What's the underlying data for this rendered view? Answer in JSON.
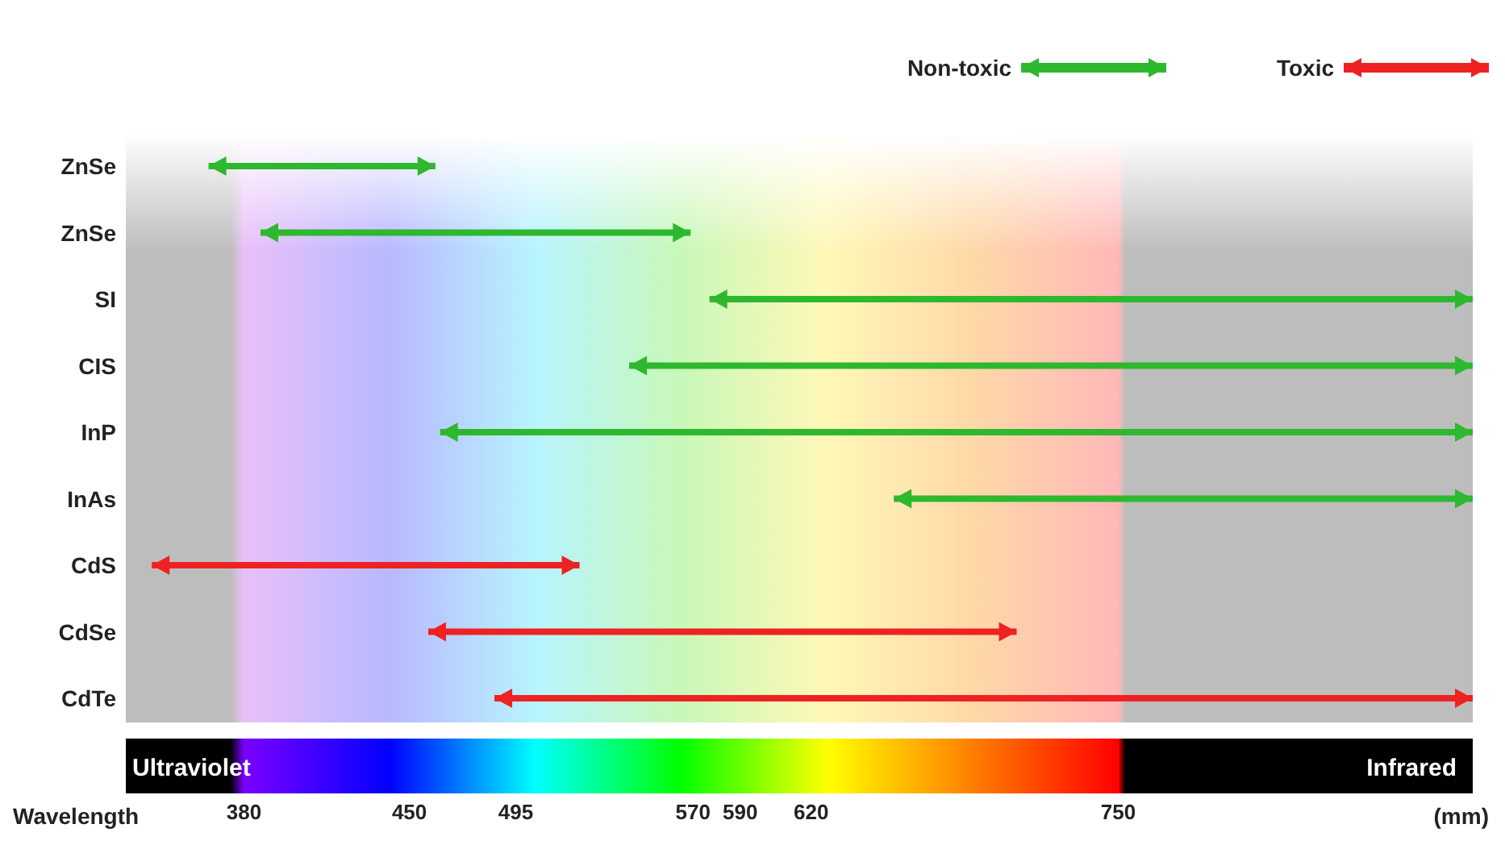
{
  "chart_data": {
    "type": "bar",
    "orientation": "horizontal",
    "xlabel": "Wavelength",
    "categories": [
      "ZnSe",
      "ZnSe",
      "SI",
      "CIS",
      "InP",
      "InAs",
      "CdS",
      "CdSe",
      "CdTe"
    ],
    "series": [
      {
        "name": "Non-toxic",
        "color": "#2eb82e",
        "base": [
          365,
          387,
          577,
          543,
          463,
          655,
          null,
          null,
          null
        ],
        "values": [
          96,
          182,
          323,
          357,
          437,
          245,
          null,
          null,
          null
        ]
      },
      {
        "name": "Toxic",
        "color": "#ee2222",
        "base": [
          null,
          null,
          null,
          null,
          null,
          null,
          341,
          458,
          486
        ],
        "values": [
          null,
          null,
          null,
          null,
          null,
          null,
          181,
          249,
          414
        ]
      }
    ],
    "xlim": [
      330,
      900
    ],
    "xticks": [
      380,
      450,
      495,
      570,
      590,
      620,
      750
    ],
    "legend": "top right",
    "annotations": [
      "Ultraviolet",
      "Infrared",
      "(mm)"
    ]
  }
}
